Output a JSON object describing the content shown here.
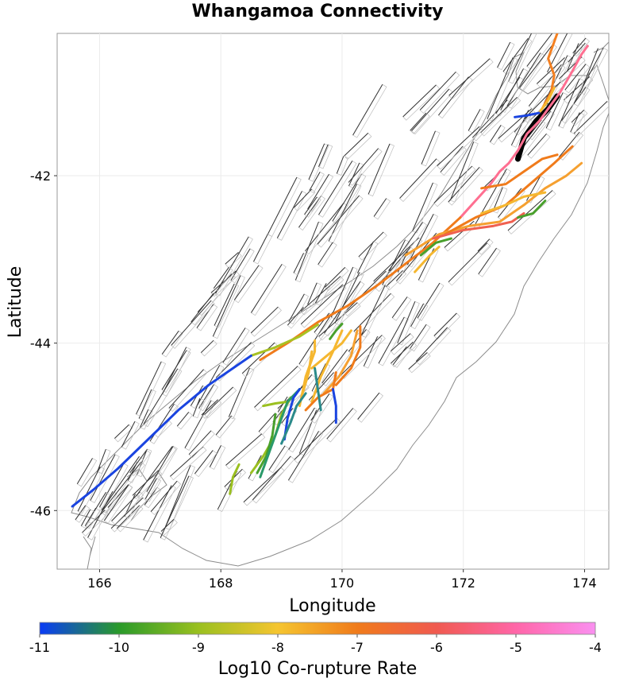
{
  "title": "Whangamoa Connectivity",
  "map": {
    "xlabel": "Longitude",
    "ylabel": "Latitude",
    "xlim": [
      165.3,
      174.4
    ],
    "ylim": [
      -46.7,
      -40.3
    ],
    "x_ticks": [
      "166",
      "168",
      "170",
      "172",
      "174"
    ],
    "x_tick_values": [
      166,
      168,
      170,
      172,
      174
    ],
    "y_ticks": [
      "-42",
      "-44",
      "-46"
    ],
    "y_tick_values": [
      -42,
      -44,
      -46
    ],
    "grid": true,
    "colors": {
      "background": "#ffffff",
      "grid": "#ebebeb",
      "coastline": "#808080",
      "fault_trace": "#333333",
      "fault_outline": "#bdbdbd",
      "selected_fault": "#000000"
    }
  },
  "colorbar": {
    "title": "Log10 Co-rupture Rate",
    "ticks": [
      "-11",
      "-10",
      "-9",
      "-8",
      "-7",
      "-6",
      "-5",
      "-4"
    ],
    "min": -11,
    "max": -4,
    "gradient": [
      "#0a3cf5",
      "#2a9a2a",
      "#9ac020",
      "#f5c530",
      "#f07b1b",
      "#f05a50",
      "#ff66a8",
      "#fa90f0"
    ]
  },
  "ruptures": [
    {
      "color": "#000000",
      "width": 7,
      "points": [
        [
          172.9,
          -41.8
        ],
        [
          173.0,
          -41.55
        ],
        [
          173.2,
          -41.35
        ],
        [
          173.4,
          -41.2
        ],
        [
          173.55,
          -41.05
        ]
      ]
    },
    {
      "color": "#ff6f91",
      "width": 3,
      "points": [
        [
          171.95,
          -42.5
        ],
        [
          172.2,
          -42.3
        ],
        [
          172.45,
          -42.1
        ],
        [
          172.6,
          -41.95
        ],
        [
          172.75,
          -41.85
        ],
        [
          172.9,
          -41.7
        ],
        [
          173.05,
          -41.5
        ],
        [
          173.25,
          -41.35
        ],
        [
          173.45,
          -41.15
        ],
        [
          173.6,
          -41.0
        ],
        [
          173.8,
          -40.75
        ],
        [
          173.95,
          -40.55
        ],
        [
          174.05,
          -40.45
        ]
      ]
    },
    {
      "color": "#f48020",
      "width": 3,
      "points": [
        [
          173.3,
          -41.2
        ],
        [
          173.45,
          -41.0
        ],
        [
          173.5,
          -40.8
        ],
        [
          173.4,
          -40.6
        ],
        [
          173.5,
          -40.4
        ],
        [
          173.55,
          -40.3
        ]
      ]
    },
    {
      "color": "#f5b730",
      "width": 3,
      "points": [
        [
          173.25,
          -41.25
        ],
        [
          173.4,
          -41.1
        ],
        [
          173.5,
          -40.95
        ]
      ]
    },
    {
      "color": "#1a44e0",
      "width": 3,
      "points": [
        [
          172.85,
          -41.3
        ],
        [
          173.05,
          -41.28
        ],
        [
          173.25,
          -41.25
        ]
      ]
    },
    {
      "color": "#f07b1b",
      "width": 3,
      "points": [
        [
          168.65,
          -44.2
        ],
        [
          169.1,
          -44.0
        ],
        [
          169.6,
          -43.75
        ],
        [
          170.1,
          -43.55
        ],
        [
          170.6,
          -43.3
        ],
        [
          171.05,
          -43.05
        ],
        [
          171.5,
          -42.8
        ],
        [
          171.95,
          -42.5
        ]
      ]
    },
    {
      "color": "#a8c223",
      "width": 3,
      "points": [
        [
          168.5,
          -44.15
        ],
        [
          168.9,
          -44.05
        ],
        [
          169.3,
          -43.92
        ],
        [
          169.6,
          -43.78
        ]
      ]
    },
    {
      "color": "#1a44e0",
      "width": 3,
      "points": [
        [
          165.55,
          -45.95
        ],
        [
          165.9,
          -45.75
        ],
        [
          166.3,
          -45.5
        ],
        [
          166.8,
          -45.15
        ],
        [
          167.3,
          -44.8
        ],
        [
          167.8,
          -44.5
        ],
        [
          168.2,
          -44.3
        ],
        [
          168.5,
          -44.15
        ]
      ]
    },
    {
      "color": "#f5a030",
      "width": 3,
      "points": [
        [
          171.05,
          -42.95
        ],
        [
          171.6,
          -42.7
        ],
        [
          172.1,
          -42.6
        ],
        [
          172.6,
          -42.55
        ],
        [
          173.0,
          -42.35
        ],
        [
          173.35,
          -42.15
        ],
        [
          173.7,
          -42.0
        ],
        [
          173.95,
          -41.85
        ]
      ]
    },
    {
      "color": "#f07b1b",
      "width": 3,
      "points": [
        [
          171.7,
          -42.7
        ],
        [
          172.2,
          -42.5
        ],
        [
          172.7,
          -42.35
        ],
        [
          173.1,
          -42.1
        ],
        [
          173.5,
          -41.85
        ],
        [
          173.8,
          -41.65
        ]
      ]
    },
    {
      "color": "#f06050",
      "width": 3,
      "points": [
        [
          171.5,
          -42.75
        ],
        [
          172.0,
          -42.65
        ],
        [
          172.5,
          -42.6
        ],
        [
          172.8,
          -42.55
        ],
        [
          173.0,
          -42.45
        ]
      ]
    },
    {
      "color": "#f07b1b",
      "width": 3,
      "points": [
        [
          172.3,
          -42.15
        ],
        [
          172.7,
          -42.1
        ],
        [
          173.0,
          -41.95
        ],
        [
          173.3,
          -41.8
        ],
        [
          173.55,
          -41.75
        ]
      ]
    },
    {
      "color": "#f5b730",
      "width": 3,
      "points": [
        [
          172.3,
          -42.45
        ],
        [
          172.7,
          -42.35
        ],
        [
          173.0,
          -42.25
        ],
        [
          173.35,
          -42.2
        ]
      ]
    },
    {
      "color": "#49a02c",
      "width": 3,
      "points": [
        [
          172.9,
          -42.5
        ],
        [
          173.15,
          -42.45
        ],
        [
          173.35,
          -42.3
        ]
      ]
    },
    {
      "color": "#49a02c",
      "width": 3,
      "points": [
        [
          171.3,
          -42.95
        ],
        [
          171.55,
          -42.8
        ],
        [
          171.8,
          -42.75
        ]
      ]
    },
    {
      "color": "#f5b730",
      "width": 3,
      "points": [
        [
          171.2,
          -43.15
        ],
        [
          171.45,
          -42.95
        ],
        [
          171.6,
          -42.85
        ]
      ]
    },
    {
      "color": "#f5b730",
      "width": 3,
      "points": [
        [
          169.5,
          -44.7
        ],
        [
          169.65,
          -44.4
        ],
        [
          169.85,
          -44.1
        ],
        [
          170.0,
          -43.85
        ]
      ]
    },
    {
      "color": "#f07b1b",
      "width": 3,
      "points": [
        [
          169.9,
          -44.5
        ],
        [
          170.15,
          -44.3
        ],
        [
          170.3,
          -44.05
        ],
        [
          170.3,
          -43.8
        ]
      ]
    },
    {
      "color": "#f5a030",
      "width": 3,
      "points": [
        [
          169.7,
          -44.6
        ],
        [
          169.95,
          -44.4
        ],
        [
          170.15,
          -44.15
        ],
        [
          170.25,
          -43.85
        ]
      ]
    },
    {
      "color": "#f5b730",
      "width": 3,
      "points": [
        [
          169.3,
          -44.75
        ],
        [
          169.4,
          -44.4
        ],
        [
          169.55,
          -44.1
        ],
        [
          169.55,
          -43.97
        ]
      ]
    },
    {
      "color": "#f07b1b",
      "width": 3,
      "points": [
        [
          169.4,
          -44.8
        ],
        [
          169.6,
          -44.65
        ],
        [
          169.85,
          -44.55
        ],
        [
          169.9,
          -44.35
        ]
      ]
    },
    {
      "color": "#f5b730",
      "width": 3,
      "points": [
        [
          169.5,
          -44.3
        ],
        [
          169.75,
          -44.15
        ],
        [
          170.0,
          -44.0
        ],
        [
          170.15,
          -43.85
        ]
      ]
    },
    {
      "color": "#49a02c",
      "width": 3,
      "points": [
        [
          169.8,
          -43.95
        ],
        [
          169.9,
          -43.85
        ],
        [
          170.0,
          -43.77
        ]
      ]
    },
    {
      "color": "#9bc020",
      "width": 3,
      "points": [
        [
          168.7,
          -44.75
        ],
        [
          168.9,
          -44.72
        ],
        [
          169.1,
          -44.7
        ]
      ]
    },
    {
      "color": "#9bc020",
      "width": 3,
      "points": [
        [
          168.5,
          -45.55
        ],
        [
          168.7,
          -45.35
        ],
        [
          168.9,
          -45.1
        ],
        [
          169.0,
          -44.85
        ],
        [
          169.15,
          -44.65
        ]
      ]
    },
    {
      "color": "#49a02c",
      "width": 3,
      "points": [
        [
          168.6,
          -45.55
        ],
        [
          168.75,
          -45.35
        ],
        [
          168.85,
          -45.1
        ],
        [
          168.9,
          -44.85
        ]
      ]
    },
    {
      "color": "#2a9a6a",
      "width": 3,
      "points": [
        [
          168.65,
          -45.6
        ],
        [
          168.8,
          -45.3
        ],
        [
          168.9,
          -45.1
        ],
        [
          169.0,
          -44.9
        ],
        [
          169.1,
          -44.7
        ],
        [
          169.3,
          -44.55
        ]
      ]
    },
    {
      "color": "#1a44e0",
      "width": 3,
      "points": [
        [
          169.05,
          -45.15
        ],
        [
          169.1,
          -44.9
        ],
        [
          169.2,
          -44.65
        ],
        [
          169.3,
          -44.55
        ]
      ]
    },
    {
      "color": "#2a8a8a",
      "width": 3,
      "points": [
        [
          169.0,
          -45.2
        ],
        [
          169.15,
          -44.95
        ],
        [
          169.25,
          -44.75
        ],
        [
          169.4,
          -44.6
        ]
      ]
    },
    {
      "color": "#2a8a8a",
      "width": 3,
      "points": [
        [
          169.55,
          -44.3
        ],
        [
          169.6,
          -44.55
        ],
        [
          169.65,
          -44.8
        ]
      ]
    },
    {
      "color": "#1a44e0",
      "width": 3,
      "points": [
        [
          169.85,
          -44.55
        ],
        [
          169.9,
          -44.75
        ],
        [
          169.9,
          -44.95
        ]
      ]
    },
    {
      "color": "#9bc020",
      "width": 3,
      "points": [
        [
          168.15,
          -45.8
        ],
        [
          168.2,
          -45.6
        ],
        [
          168.3,
          -45.45
        ]
      ]
    },
    {
      "color": "#f5b730",
      "width": 3,
      "points": [
        [
          169.35,
          -44.6
        ],
        [
          169.45,
          -44.35
        ],
        [
          169.5,
          -44.1
        ]
      ]
    }
  ]
}
